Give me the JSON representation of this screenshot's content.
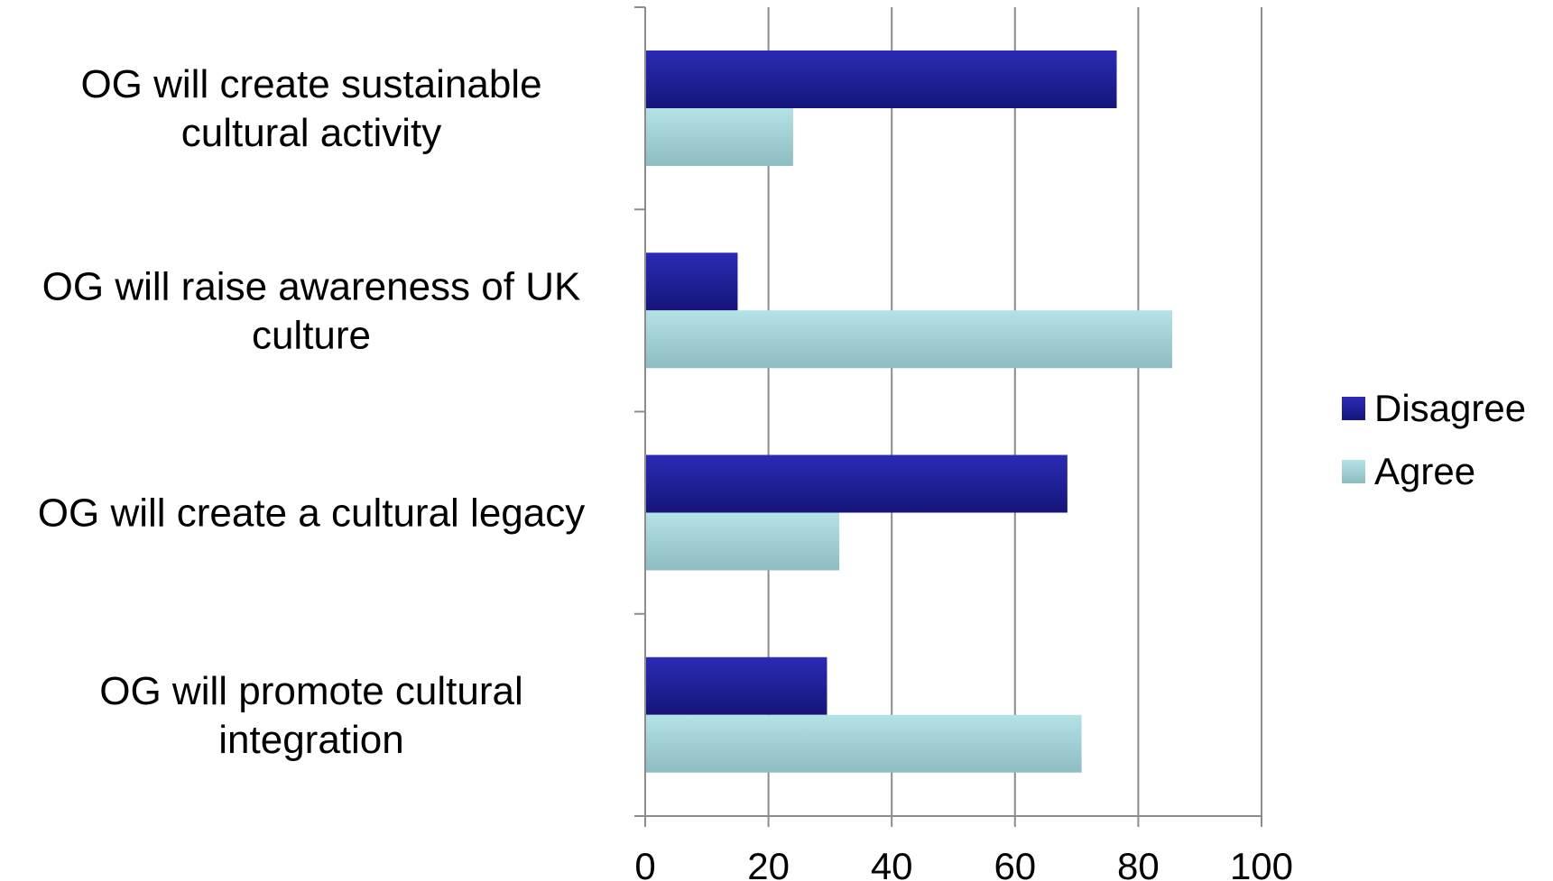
{
  "chart_data": {
    "type": "bar",
    "orientation": "horizontal",
    "categories": [
      [
        "OG will create sustainable",
        "cultural activity"
      ],
      [
        "OG will raise awareness of UK",
        "culture"
      ],
      [
        "OG will create a cultural legacy"
      ],
      [
        "OG will promote cultural",
        "integration"
      ]
    ],
    "series": [
      {
        "name": "Disagree",
        "values": [
          76.5,
          15,
          68.5,
          29.5
        ],
        "color": "#1f1f9a"
      },
      {
        "name": "Agree",
        "values": [
          24,
          85.5,
          31.5,
          70.8
        ],
        "color": "#9fd0d4"
      }
    ],
    "xlim": [
      0,
      100
    ],
    "xticks": [
      "0",
      "20",
      "40",
      "60",
      "80",
      "100"
    ],
    "grid": "vertical",
    "legend": "right"
  }
}
